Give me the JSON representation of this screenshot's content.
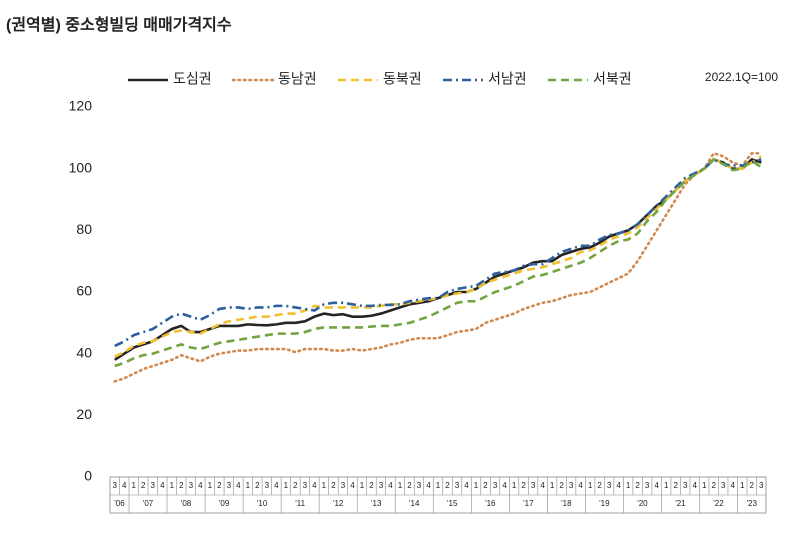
{
  "chart_data": {
    "type": "line",
    "title": "(권역별) 중소형빌딩 매매가격지수",
    "note": "2022.1Q=100",
    "categories": [
      "3",
      "4",
      "1",
      "2",
      "3",
      "4",
      "1",
      "2",
      "3",
      "4",
      "1",
      "2",
      "3",
      "4",
      "1",
      "2",
      "3",
      "4",
      "1",
      "2",
      "3",
      "4",
      "1",
      "2",
      "3",
      "4",
      "1",
      "2",
      "3",
      "4",
      "1",
      "2",
      "3",
      "4",
      "1",
      "2",
      "3",
      "4",
      "1",
      "2",
      "3",
      "4",
      "1",
      "2",
      "3",
      "4",
      "1",
      "2",
      "3",
      "4",
      "1",
      "2",
      "3",
      "4",
      "1",
      "2",
      "3",
      "4",
      "1",
      "2",
      "3",
      "4",
      "1",
      "2",
      "3",
      "4",
      "1",
      "2",
      "3"
    ],
    "year_labels": [
      "'06",
      "'07",
      "'08",
      "'09",
      "'10",
      "'11",
      "'12",
      "'13",
      "'14",
      "'15",
      "'16",
      "'17",
      "'18",
      "'19",
      "'20",
      "'21",
      "'22",
      "'23"
    ],
    "ylim": [
      0,
      120
    ],
    "yticks": [
      0,
      20,
      40,
      60,
      80,
      100,
      120
    ],
    "grid": false,
    "series": [
      {
        "name": "도심권",
        "color": "#262324",
        "style": "solid",
        "values": [
          38,
          40,
          42,
          43,
          44,
          46,
          48,
          49,
          47,
          47,
          48,
          49,
          49,
          49,
          49.5,
          49.3,
          49.2,
          49.5,
          50,
          50,
          50.5,
          52,
          53,
          52.5,
          52.8,
          52,
          52,
          52.3,
          53,
          54,
          55,
          56,
          56.5,
          57,
          58,
          59,
          60,
          60,
          61,
          63,
          65,
          66,
          67,
          68,
          69.5,
          70,
          70,
          72,
          73,
          74,
          74.5,
          76,
          78,
          79,
          80,
          82,
          85,
          88,
          90,
          93,
          96,
          98,
          100,
          103,
          102,
          100,
          100,
          103,
          102
        ]
      },
      {
        "name": "동남권",
        "color": "#d08a50",
        "style": "dotted",
        "values": [
          31,
          32,
          33.5,
          35,
          36,
          37,
          38,
          39.5,
          38.5,
          37.5,
          39,
          40,
          40.5,
          41,
          41,
          41.5,
          41.5,
          41.5,
          41.5,
          40.5,
          41.5,
          41.5,
          41.5,
          41,
          41,
          41.5,
          41,
          41.5,
          42,
          43,
          43.5,
          44.5,
          45,
          45,
          45,
          46,
          47,
          47.5,
          48,
          50,
          51,
          52,
          53,
          54.5,
          55.5,
          56.5,
          57,
          58,
          59,
          59.5,
          60,
          61.5,
          63,
          64.5,
          66,
          70,
          75,
          80,
          85,
          90,
          95,
          98,
          100,
          105,
          104,
          102,
          101,
          105,
          105
        ]
      },
      {
        "name": "동북권",
        "color": "#f0c030",
        "style": "dashed",
        "values": [
          39,
          40.5,
          42.5,
          43.5,
          44,
          45.5,
          47,
          47.5,
          47,
          46.5,
          48,
          49.5,
          50.5,
          51,
          51.5,
          52,
          52,
          52.5,
          53,
          53,
          54,
          55.5,
          55,
          55,
          55,
          55,
          55,
          55,
          55.5,
          56,
          56,
          56.5,
          57,
          57.5,
          58,
          59,
          59.5,
          60,
          61,
          63,
          64,
          65,
          66,
          67,
          67.5,
          68,
          69,
          70,
          71,
          73,
          73.5,
          75,
          77,
          78,
          79,
          81,
          84,
          87,
          90,
          93,
          96,
          98,
          100,
          103,
          102,
          100,
          100,
          102,
          104
        ]
      },
      {
        "name": "서남권",
        "color": "#2e5f9e",
        "style": "dashdot",
        "values": [
          42.5,
          44,
          46,
          47,
          48,
          50,
          52,
          53,
          52,
          51,
          52.5,
          54.5,
          55,
          55,
          54.5,
          55,
          55,
          55.5,
          55.5,
          55,
          54.5,
          54,
          56,
          56.5,
          56.5,
          56,
          55.5,
          55.5,
          55.8,
          55.8,
          56,
          57,
          57.5,
          58,
          58,
          60,
          61,
          61.5,
          62,
          64,
          66,
          66.5,
          67,
          68.5,
          69,
          69,
          71,
          73,
          74,
          75,
          75,
          77,
          78.5,
          79,
          80,
          82,
          85,
          88,
          91,
          94,
          97,
          98.5,
          100,
          103,
          101.5,
          101,
          101,
          102,
          103
        ]
      },
      {
        "name": "서북권",
        "color": "#72a440",
        "style": "dashed",
        "values": [
          36,
          37,
          38.5,
          39.5,
          40,
          41,
          42,
          43,
          42,
          41.5,
          42.5,
          43.5,
          44,
          44.5,
          45,
          45.5,
          46,
          46.5,
          46.5,
          46.5,
          47,
          48,
          48.5,
          48.5,
          48.5,
          48.5,
          48.5,
          48.8,
          49,
          49,
          49.5,
          50,
          51,
          52,
          53.5,
          55,
          56.5,
          57,
          57,
          58.5,
          60,
          61,
          62,
          63.5,
          65,
          65.5,
          66.5,
          67.5,
          68.5,
          69.5,
          71,
          73,
          75,
          76.5,
          77,
          79,
          83,
          86,
          90,
          93,
          96,
          98,
          100,
          103,
          101.5,
          99.5,
          100,
          102.5,
          100.5
        ]
      }
    ]
  }
}
